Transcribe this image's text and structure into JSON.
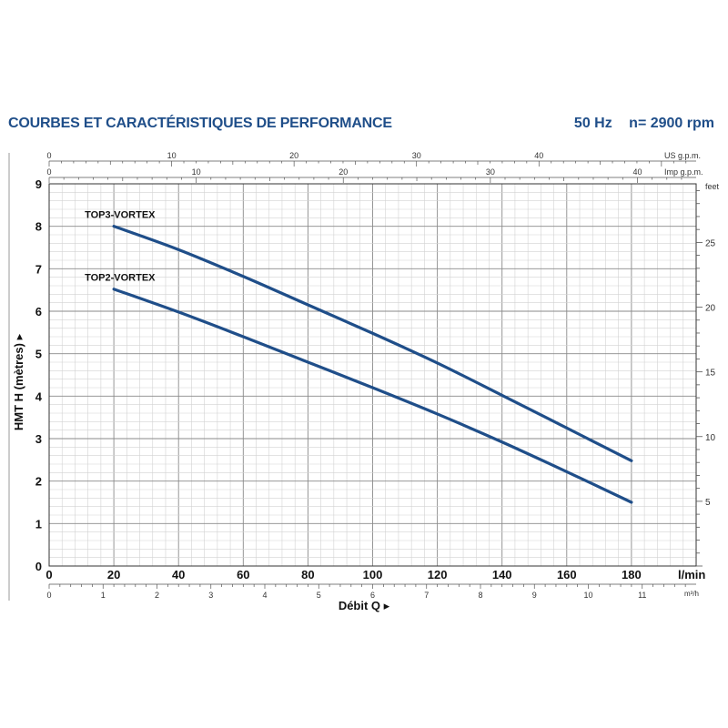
{
  "header": {
    "title": "COURBES ET CARACTÉRISTIQUES DE PERFORMANCE",
    "frequency": "50 Hz",
    "speed": "n= 2900 rpm"
  },
  "chart_data": {
    "type": "line",
    "title": "COURBES ET CARACTÉRISTIQUES DE PERFORMANCE",
    "xlabel": "Débit Q",
    "ylabel": "HMT H (mètres)",
    "x_unit": "l/min",
    "xlim": [
      0,
      200
    ],
    "ylim": [
      0,
      9
    ],
    "x_ticks": [
      0,
      20,
      40,
      60,
      80,
      100,
      120,
      140,
      160,
      180
    ],
    "y_ticks": [
      0,
      1,
      2,
      3,
      4,
      5,
      6,
      7,
      8,
      9
    ],
    "secondary_axes": {
      "bottom_m3h": {
        "unit": "m³/h",
        "ticks": [
          0,
          1,
          2,
          3,
          4,
          5,
          6,
          7,
          8,
          9,
          10,
          11
        ]
      },
      "top_us_gpm": {
        "unit": "US g.p.m.",
        "ticks": [
          0,
          10,
          20,
          30,
          40
        ]
      },
      "top_imp_gpm": {
        "unit": "Imp g.p.m.",
        "ticks": [
          0,
          10,
          20,
          30,
          40
        ]
      },
      "right_feet": {
        "unit": "feet",
        "ticks": [
          5,
          10,
          15,
          20,
          25
        ]
      }
    },
    "grid": true,
    "series": [
      {
        "name": "TOP3-VORTEX",
        "color": "#1f4e89",
        "x": [
          20,
          40,
          60,
          80,
          100,
          120,
          140,
          160,
          180
        ],
        "y": [
          8.0,
          7.45,
          6.82,
          6.15,
          5.48,
          4.78,
          4.02,
          3.25,
          2.48
        ]
      },
      {
        "name": "TOP2-VORTEX",
        "color": "#1f4e89",
        "x": [
          20,
          40,
          60,
          80,
          100,
          120,
          140,
          160,
          180
        ],
        "y": [
          6.52,
          5.98,
          5.4,
          4.8,
          4.2,
          3.58,
          2.92,
          2.22,
          1.5
        ]
      }
    ]
  }
}
